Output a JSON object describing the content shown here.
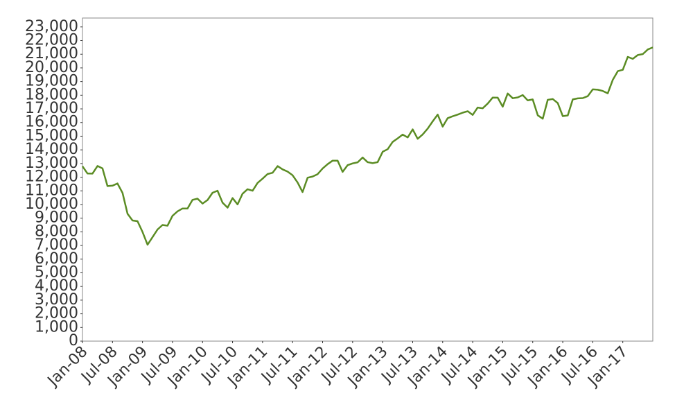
{
  "chart_data": {
    "type": "line",
    "color": "#5b8c24",
    "x": [
      "2008-01",
      "2008-02",
      "2008-03",
      "2008-04",
      "2008-05",
      "2008-06",
      "2008-07",
      "2008-08",
      "2008-09",
      "2008-10",
      "2008-11",
      "2008-12",
      "2009-01",
      "2009-02",
      "2009-03",
      "2009-04",
      "2009-05",
      "2009-06",
      "2009-07",
      "2009-08",
      "2009-09",
      "2009-10",
      "2009-11",
      "2009-12",
      "2010-01",
      "2010-02",
      "2010-03",
      "2010-04",
      "2010-05",
      "2010-06",
      "2010-07",
      "2010-08",
      "2010-09",
      "2010-10",
      "2010-11",
      "2010-12",
      "2011-01",
      "2011-02",
      "2011-03",
      "2011-04",
      "2011-05",
      "2011-06",
      "2011-07",
      "2011-08",
      "2011-09",
      "2011-10",
      "2011-11",
      "2011-12",
      "2012-01",
      "2012-02",
      "2012-03",
      "2012-04",
      "2012-05",
      "2012-06",
      "2012-07",
      "2012-08",
      "2012-09",
      "2012-10",
      "2012-11",
      "2012-12",
      "2013-01",
      "2013-02",
      "2013-03",
      "2013-04",
      "2013-05",
      "2013-06",
      "2013-07",
      "2013-08",
      "2013-09",
      "2013-10",
      "2013-11",
      "2013-12",
      "2014-01",
      "2014-02",
      "2014-03",
      "2014-04",
      "2014-05",
      "2014-06",
      "2014-07",
      "2014-08",
      "2014-09",
      "2014-10",
      "2014-11",
      "2014-12",
      "2015-01",
      "2015-02",
      "2015-03",
      "2015-04",
      "2015-05",
      "2015-06",
      "2015-07",
      "2015-08",
      "2015-09",
      "2015-10",
      "2015-11",
      "2015-12",
      "2016-01",
      "2016-02",
      "2016-03",
      "2016-04",
      "2016-05",
      "2016-06",
      "2016-07",
      "2016-08",
      "2016-09",
      "2016-10",
      "2016-11",
      "2016-12",
      "2017-01",
      "2017-02",
      "2017-03",
      "2017-04",
      "2017-05",
      "2017-06",
      "2017-07"
    ],
    "values": [
      12800,
      12270,
      12260,
      12820,
      12640,
      11350,
      11380,
      11540,
      10850,
      9330,
      8830,
      8780,
      8000,
      7060,
      7610,
      8170,
      8500,
      8450,
      9170,
      9500,
      9710,
      9710,
      10340,
      10430,
      10070,
      10330,
      10860,
      11010,
      10140,
      9770,
      10470,
      10010,
      10790,
      11120,
      11010,
      11580,
      11890,
      12230,
      12320,
      12810,
      12570,
      12410,
      12140,
      11610,
      10910,
      11960,
      12050,
      12220,
      12630,
      12950,
      13210,
      13210,
      12390,
      12880,
      13010,
      13090,
      13440,
      13100,
      13030,
      13100,
      13860,
      14050,
      14580,
      14840,
      15120,
      14910,
      15500,
      14810,
      15130,
      15550,
      16090,
      16580,
      15700,
      16320,
      16460,
      16580,
      16720,
      16830,
      16560,
      17100,
      17040,
      17390,
      17830,
      17820,
      17160,
      18130,
      17780,
      17840,
      18010,
      17620,
      17690,
      16530,
      16280,
      17660,
      17720,
      17430,
      16470,
      16520,
      17690,
      17770,
      17790,
      17930,
      18430,
      18400,
      18310,
      18140,
      19120,
      19760,
      19860,
      20810,
      20660,
      20940,
      21010,
      21350,
      21500
    ],
    "xlim": [
      "2008-01",
      "2017-07"
    ],
    "xticks": [
      {
        "value": "2008-01",
        "label": "Jan-08"
      },
      {
        "value": "2008-07",
        "label": "Jul-08"
      },
      {
        "value": "2009-01",
        "label": "Jan-09"
      },
      {
        "value": "2009-07",
        "label": "Jul-09"
      },
      {
        "value": "2010-01",
        "label": "Jan-10"
      },
      {
        "value": "2010-07",
        "label": "Jul-10"
      },
      {
        "value": "2011-01",
        "label": "Jan-11"
      },
      {
        "value": "2011-07",
        "label": "Jul-11"
      },
      {
        "value": "2012-01",
        "label": "Jan-12"
      },
      {
        "value": "2012-07",
        "label": "Jul-12"
      },
      {
        "value": "2013-01",
        "label": "Jan-13"
      },
      {
        "value": "2013-07",
        "label": "Jul-13"
      },
      {
        "value": "2014-01",
        "label": "Jan-14"
      },
      {
        "value": "2014-07",
        "label": "Jul-14"
      },
      {
        "value": "2015-01",
        "label": "Jan-15"
      },
      {
        "value": "2015-07",
        "label": "Jul-15"
      },
      {
        "value": "2016-01",
        "label": "Jan-16"
      },
      {
        "value": "2016-07",
        "label": "Jul-16"
      },
      {
        "value": "2017-01",
        "label": "Jan-17"
      }
    ],
    "ylim": [
      0,
      23650
    ],
    "yticks": [
      0,
      {
        "value": 1000,
        "label": "1,000"
      },
      {
        "value": 2000,
        "label": "2,000"
      },
      {
        "value": 3000,
        "label": "3,000"
      },
      {
        "value": 4000,
        "label": "4,000"
      },
      {
        "value": 5000,
        "label": "5,000"
      },
      {
        "value": 6000,
        "label": "6,000"
      },
      {
        "value": 7000,
        "label": "7,000"
      },
      {
        "value": 8000,
        "label": "8,000"
      },
      {
        "value": 9000,
        "label": "9,000"
      },
      {
        "value": 10000,
        "label": "10,000"
      },
      {
        "value": 11000,
        "label": "11,000"
      },
      {
        "value": 12000,
        "label": "12,000"
      },
      {
        "value": 13000,
        "label": "13,000"
      },
      {
        "value": 14000,
        "label": "14,000"
      },
      {
        "value": 15000,
        "label": "15,000"
      },
      {
        "value": 16000,
        "label": "16,000"
      },
      {
        "value": 17000,
        "label": "17,000"
      },
      {
        "value": 18000,
        "label": "18,000"
      },
      {
        "value": 19000,
        "label": "19,000"
      },
      {
        "value": 20000,
        "label": "20,000"
      },
      {
        "value": 21000,
        "label": "21,000"
      },
      {
        "value": 22000,
        "label": "22,000"
      },
      {
        "value": 23000,
        "label": "23,000"
      }
    ],
    "grid": false
  }
}
